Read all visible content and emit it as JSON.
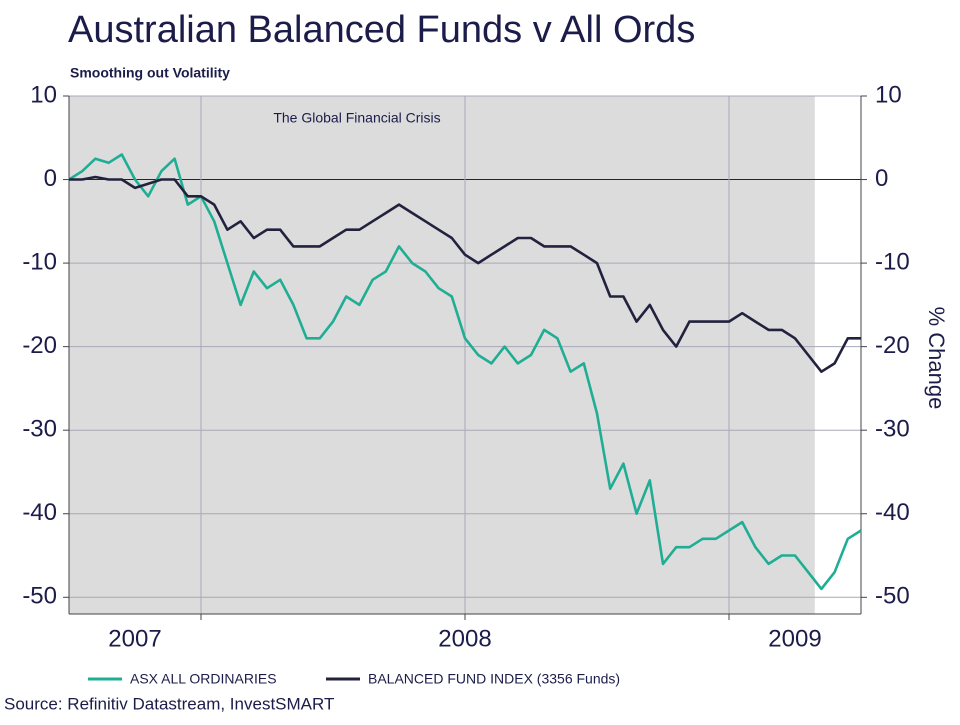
{
  "chart_data": {
    "type": "line",
    "title": "Australian Balanced Funds v All Ords",
    "subtitle": "Smoothing out Volatility",
    "annotation": "The Global Financial Crisis",
    "shade": [
      2006.8,
      2009.06
    ],
    "y2_label": "% Change",
    "source": "Source: Refinitiv Datastream, InvestSMART",
    "xlim": [
      2006.8,
      2009.2
    ],
    "xticks": [
      2007,
      2008,
      2009
    ],
    "xgrid": [
      2007.2,
      2008,
      2008.8
    ],
    "ylim": [
      -52,
      10
    ],
    "yticks": [
      10,
      0,
      -10,
      -20,
      -30,
      -40,
      -50
    ],
    "y2lim": [
      -52,
      10
    ],
    "y2ticks": [
      10,
      0,
      -10,
      -20,
      -30,
      -40,
      -50
    ],
    "grid": true,
    "legend": "bottom",
    "x": [
      2006.8,
      2006.84,
      2006.88,
      2006.92,
      2006.96,
      2007.0,
      2007.04,
      2007.08,
      2007.12,
      2007.16,
      2007.2,
      2007.24,
      2007.28,
      2007.32,
      2007.36,
      2007.4,
      2007.44,
      2007.48,
      2007.52,
      2007.56,
      2007.6,
      2007.64,
      2007.68,
      2007.72,
      2007.76,
      2007.8,
      2007.84,
      2007.88,
      2007.92,
      2007.96,
      2008.0,
      2008.04,
      2008.08,
      2008.12,
      2008.16,
      2008.2,
      2008.24,
      2008.28,
      2008.32,
      2008.36,
      2008.4,
      2008.44,
      2008.48,
      2008.52,
      2008.56,
      2008.6,
      2008.64,
      2008.68,
      2008.72,
      2008.76,
      2008.8,
      2008.84,
      2008.88,
      2008.92,
      2008.96,
      2009.0,
      2009.04,
      2009.08,
      2009.12,
      2009.16,
      2009.2
    ],
    "series": [
      {
        "name": "ASX ALL ORDINARIES",
        "color": "#1fae94",
        "values": [
          0,
          1,
          2.5,
          2,
          3,
          0,
          -2,
          1,
          2.5,
          -3,
          -2,
          -5,
          -10,
          -15,
          -11,
          -13,
          -12,
          -15,
          -19,
          -19,
          -17,
          -14,
          -15,
          -12,
          -11,
          -8,
          -10,
          -11,
          -13,
          -14,
          -19,
          -21,
          -22,
          -20,
          -22,
          -21,
          -18,
          -19,
          -23,
          -22,
          -28,
          -37,
          -34,
          -40,
          -36,
          -46,
          -44,
          -44,
          -43,
          -43,
          -42,
          -41,
          -44,
          -46,
          -45,
          -45,
          -47,
          -49,
          -47,
          -43,
          -42
        ]
      },
      {
        "name": "BALANCED FUND INDEX (3356 Funds)",
        "color": "#22223e",
        "axis": "y2",
        "values": [
          0,
          0,
          0.3,
          0,
          0,
          -1,
          -0.5,
          0,
          0,
          -2,
          -2,
          -3,
          -6,
          -5,
          -7,
          -6,
          -6,
          -8,
          -8,
          -8,
          -7,
          -6,
          -6,
          -5,
          -4,
          -3,
          -4,
          -5,
          -6,
          -7,
          -9,
          -10,
          -9,
          -8,
          -7,
          -7,
          -8,
          -8,
          -8,
          -9,
          -10,
          -14,
          -14,
          -17,
          -15,
          -18,
          -20,
          -17,
          -17,
          -17,
          -17,
          -16,
          -17,
          -18,
          -18,
          -19,
          -21,
          -23,
          -22,
          -19,
          -19
        ]
      }
    ]
  }
}
